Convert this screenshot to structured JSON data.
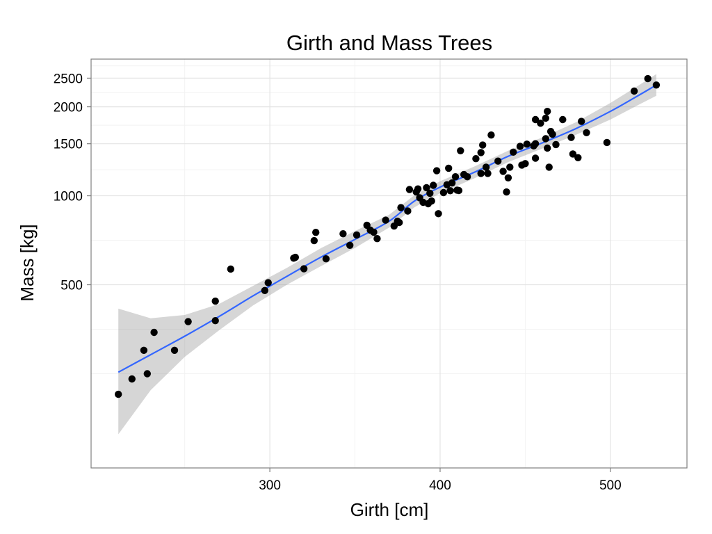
{
  "chart_data": {
    "type": "scatter",
    "title": "Girth and Mass Trees",
    "xlabel": "Girth [cm]",
    "ylabel": "Mass [kg]",
    "xlim": [
      195,
      545
    ],
    "ylim": [
      120,
      2900
    ],
    "y_scale": "log",
    "x_ticks": [
      300,
      400,
      500
    ],
    "x_minor": [
      250,
      350,
      450
    ],
    "y_ticks": [
      500,
      1000,
      1500,
      2000,
      2500
    ],
    "grid": true,
    "legend": "none",
    "point_color": "#000000",
    "smooth_color": "#3366ff",
    "ribbon_color": "#999999",
    "points": [
      {
        "x": 211,
        "y": 213
      },
      {
        "x": 219,
        "y": 240
      },
      {
        "x": 226,
        "y": 300
      },
      {
        "x": 228,
        "y": 250
      },
      {
        "x": 232,
        "y": 345
      },
      {
        "x": 244,
        "y": 300
      },
      {
        "x": 252,
        "y": 375
      },
      {
        "x": 268,
        "y": 378
      },
      {
        "x": 268,
        "y": 440
      },
      {
        "x": 277,
        "y": 565
      },
      {
        "x": 297,
        "y": 478
      },
      {
        "x": 299,
        "y": 508
      },
      {
        "x": 314,
        "y": 615
      },
      {
        "x": 315,
        "y": 619
      },
      {
        "x": 320,
        "y": 566
      },
      {
        "x": 326,
        "y": 705
      },
      {
        "x": 327,
        "y": 752
      },
      {
        "x": 333,
        "y": 612
      },
      {
        "x": 343,
        "y": 744
      },
      {
        "x": 347,
        "y": 680
      },
      {
        "x": 351,
        "y": 737
      },
      {
        "x": 357,
        "y": 795
      },
      {
        "x": 359,
        "y": 765
      },
      {
        "x": 361,
        "y": 753
      },
      {
        "x": 363,
        "y": 716
      },
      {
        "x": 368,
        "y": 827
      },
      {
        "x": 373,
        "y": 790
      },
      {
        "x": 375,
        "y": 820
      },
      {
        "x": 376,
        "y": 812
      },
      {
        "x": 377,
        "y": 912
      },
      {
        "x": 381,
        "y": 888
      },
      {
        "x": 382,
        "y": 1050
      },
      {
        "x": 386,
        "y": 1030
      },
      {
        "x": 387,
        "y": 1055
      },
      {
        "x": 388,
        "y": 985
      },
      {
        "x": 390,
        "y": 950
      },
      {
        "x": 392,
        "y": 1065
      },
      {
        "x": 393,
        "y": 940
      },
      {
        "x": 394,
        "y": 1020
      },
      {
        "x": 395,
        "y": 960
      },
      {
        "x": 396,
        "y": 1085
      },
      {
        "x": 398,
        "y": 1215
      },
      {
        "x": 399,
        "y": 870
      },
      {
        "x": 402,
        "y": 1025
      },
      {
        "x": 404,
        "y": 1090
      },
      {
        "x": 405,
        "y": 1240
      },
      {
        "x": 406,
        "y": 1040
      },
      {
        "x": 407,
        "y": 1105
      },
      {
        "x": 409,
        "y": 1160
      },
      {
        "x": 410,
        "y": 1045
      },
      {
        "x": 411,
        "y": 1042
      },
      {
        "x": 412,
        "y": 1420
      },
      {
        "x": 414,
        "y": 1180
      },
      {
        "x": 416,
        "y": 1160
      },
      {
        "x": 421,
        "y": 1335
      },
      {
        "x": 424,
        "y": 1400
      },
      {
        "x": 424,
        "y": 1190
      },
      {
        "x": 425,
        "y": 1485
      },
      {
        "x": 427,
        "y": 1250
      },
      {
        "x": 428,
        "y": 1190
      },
      {
        "x": 430,
        "y": 1605
      },
      {
        "x": 434,
        "y": 1310
      },
      {
        "x": 437,
        "y": 1210
      },
      {
        "x": 439,
        "y": 1030
      },
      {
        "x": 440,
        "y": 1150
      },
      {
        "x": 441,
        "y": 1250
      },
      {
        "x": 443,
        "y": 1405
      },
      {
        "x": 447,
        "y": 1470
      },
      {
        "x": 448,
        "y": 1270
      },
      {
        "x": 450,
        "y": 1285
      },
      {
        "x": 451,
        "y": 1495
      },
      {
        "x": 455,
        "y": 1475
      },
      {
        "x": 456,
        "y": 1500
      },
      {
        "x": 456,
        "y": 1810
      },
      {
        "x": 456,
        "y": 1340
      },
      {
        "x": 459,
        "y": 1760
      },
      {
        "x": 462,
        "y": 1560
      },
      {
        "x": 462,
        "y": 1830
      },
      {
        "x": 463,
        "y": 1450
      },
      {
        "x": 463,
        "y": 1930
      },
      {
        "x": 464,
        "y": 1250
      },
      {
        "x": 465,
        "y": 1650
      },
      {
        "x": 466,
        "y": 1615
      },
      {
        "x": 468,
        "y": 1490
      },
      {
        "x": 472,
        "y": 1810
      },
      {
        "x": 477,
        "y": 1575
      },
      {
        "x": 478,
        "y": 1385
      },
      {
        "x": 481,
        "y": 1345
      },
      {
        "x": 483,
        "y": 1785
      },
      {
        "x": 486,
        "y": 1635
      },
      {
        "x": 498,
        "y": 1515
      },
      {
        "x": 514,
        "y": 2260
      },
      {
        "x": 522,
        "y": 2490
      },
      {
        "x": 527,
        "y": 2370
      }
    ],
    "smooth": {
      "x": [
        211,
        230,
        250,
        270,
        290,
        310,
        330,
        350,
        370,
        385,
        400,
        420,
        440,
        460,
        480,
        500,
        515,
        527
      ],
      "y": [
        253,
        290,
        335,
        390,
        458,
        534,
        620,
        712,
        820,
        960,
        1070,
        1200,
        1360,
        1510,
        1690,
        1930,
        2160,
        2370
      ],
      "ymin": [
        156,
        220,
        285,
        350,
        425,
        500,
        578,
        666,
        780,
        915,
        1020,
        1145,
        1300,
        1445,
        1610,
        1810,
        2010,
        2180
      ],
      "ymax": [
        415,
        385,
        395,
        430,
        495,
        570,
        665,
        760,
        862,
        1005,
        1120,
        1255,
        1420,
        1575,
        1775,
        2060,
        2330,
        2580
      ]
    }
  }
}
